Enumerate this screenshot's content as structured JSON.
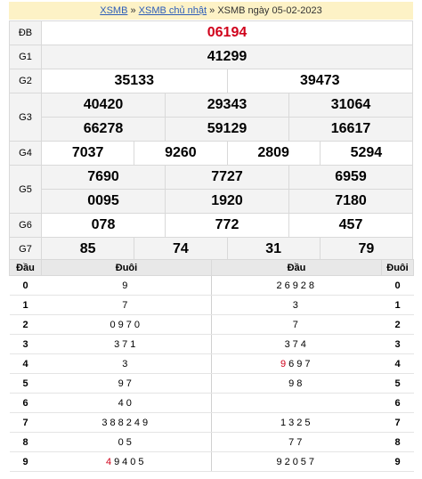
{
  "breadcrumb": {
    "link1": "XSMB",
    "sep1": " » ",
    "link2": "XSMB chủ nhật",
    "sep2": " » ",
    "current": "XSMB ngày 05-02-2023"
  },
  "results": {
    "db": {
      "label": "ĐB",
      "values": [
        "06194"
      ]
    },
    "g1": {
      "label": "G1",
      "values": [
        "41299"
      ]
    },
    "g2": {
      "label": "G2",
      "values": [
        "35133",
        "39473"
      ]
    },
    "g3": {
      "label": "G3",
      "row1": [
        "40420",
        "29343",
        "31064"
      ],
      "row2": [
        "66278",
        "59129",
        "16617"
      ]
    },
    "g4": {
      "label": "G4",
      "values": [
        "7037",
        "9260",
        "2809",
        "5294"
      ]
    },
    "g5": {
      "label": "G5",
      "row1": [
        "7690",
        "7727",
        "6959"
      ],
      "row2": [
        "0095",
        "1920",
        "7180"
      ]
    },
    "g6": {
      "label": "G6",
      "values": [
        "078",
        "772",
        "457"
      ]
    },
    "g7": {
      "label": "G7",
      "values": [
        "85",
        "74",
        "31",
        "79"
      ]
    }
  },
  "loto": {
    "headers": {
      "dau_left": "Đầu",
      "duoi_left": "Đuôi",
      "dau_right": "Đầu",
      "duoi_right": "Đuôi"
    },
    "rows": [
      {
        "head": "0",
        "duoi": "9",
        "dau": "26928",
        "tail": "0"
      },
      {
        "head": "1",
        "duoi": "7",
        "dau": "3",
        "tail": "1"
      },
      {
        "head": "2",
        "duoi": "0970",
        "dau": "7",
        "tail": "2"
      },
      {
        "head": "3",
        "duoi": "371",
        "dau": "374",
        "tail": "3"
      },
      {
        "head": "4",
        "duoi": "3",
        "dau_red": "9",
        "dau": "697",
        "tail": "4"
      },
      {
        "head": "5",
        "duoi": "97",
        "dau": "98",
        "tail": "5"
      },
      {
        "head": "6",
        "duoi": "40",
        "dau": "",
        "tail": "6"
      },
      {
        "head": "7",
        "duoi": "388249",
        "dau": "1325",
        "tail": "7"
      },
      {
        "head": "8",
        "duoi": "05",
        "dau": "77",
        "tail": "8"
      },
      {
        "head": "9",
        "duoi_red": "4",
        "duoi": "9405",
        "dau": "92057",
        "tail": "9"
      }
    ]
  },
  "colors": {
    "special": "#d0021b",
    "link": "#2d5db8",
    "breadcrumb_bg": "#fdf2c6",
    "label_bg": "#f3f3f3"
  }
}
